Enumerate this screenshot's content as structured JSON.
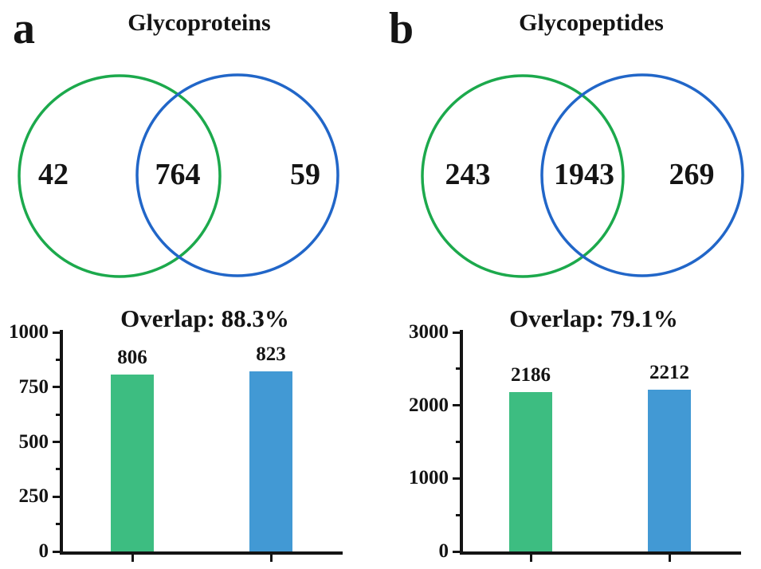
{
  "figure": {
    "background": "#ffffff",
    "axis_color": "#141414",
    "panels": [
      {
        "letter": "a",
        "title": "Glycoproteins",
        "venn": {
          "left_count": "42",
          "overlap_count": "764",
          "right_count": "59",
          "left_circle_color": "#1ca94c",
          "right_circle_color": "#2166c8"
        }
      },
      {
        "letter": "b",
        "title": "Glycopeptides",
        "venn": {
          "left_count": "243",
          "overlap_count": "1943",
          "right_count": "269",
          "left_circle_color": "#1ca94c",
          "right_circle_color": "#2166c8"
        }
      }
    ]
  },
  "chart_data": [
    {
      "type": "bar",
      "title": "Overlap: 88.3%",
      "categories": [
        "",
        ""
      ],
      "values": [
        806,
        823
      ],
      "data_labels": [
        "806",
        "823"
      ],
      "bar_colors": [
        "#3dbd81",
        "#4299d4"
      ],
      "ylim": [
        0,
        1000
      ],
      "yticks": [
        0,
        250,
        500,
        750,
        1000
      ],
      "minor_yticks": [
        125,
        375,
        625,
        875
      ],
      "xlabel": "",
      "ylabel": "",
      "grid": false,
      "legend": "none"
    },
    {
      "type": "bar",
      "title": "Overlap: 79.1%",
      "categories": [
        "",
        ""
      ],
      "values": [
        2186,
        2212
      ],
      "data_labels": [
        "2186",
        "2212"
      ],
      "bar_colors": [
        "#3dbd81",
        "#4299d4"
      ],
      "ylim": [
        0,
        3000
      ],
      "yticks": [
        0,
        1000,
        2000,
        3000
      ],
      "minor_yticks": [
        500,
        1500,
        2500
      ],
      "xlabel": "",
      "ylabel": "",
      "grid": false,
      "legend": "none"
    }
  ]
}
